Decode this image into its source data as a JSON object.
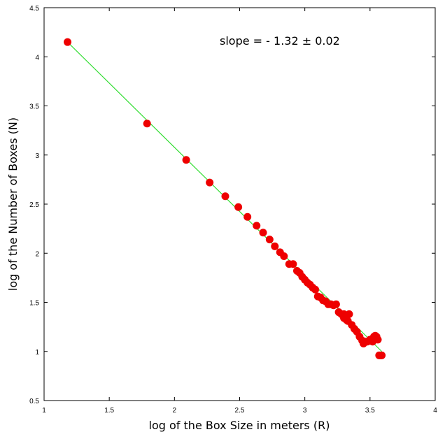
{
  "chart_data": {
    "type": "scatter",
    "title": "",
    "xlabel": "log of the Box Size in meters (R)",
    "ylabel": "log of the Number of Boxes (N)",
    "xlim": [
      1,
      4
    ],
    "ylim": [
      0.5,
      4.5
    ],
    "x_ticks": [
      1,
      1.5,
      2,
      2.5,
      3,
      3.5,
      4
    ],
    "x_tick_labels": [
      "1",
      "1.5",
      "2",
      "2.5",
      "3",
      "3.5",
      "4"
    ],
    "y_ticks": [
      0.5,
      1,
      1.5,
      2,
      2.5,
      3,
      3.5,
      4,
      4.5
    ],
    "y_tick_labels": [
      "0.5",
      "1",
      "1.5",
      "2",
      "2.5",
      "3",
      "3.5",
      "4",
      "4.5"
    ],
    "grid": false,
    "annotation": "slope = - 1.32 ± 0.02",
    "colors": {
      "points": "#ee0000",
      "fit_line": "#33dd33"
    },
    "series": [
      {
        "name": "",
        "x": [
          1.18,
          1.79,
          2.09,
          2.27,
          2.39,
          2.49,
          2.56,
          2.63,
          2.68,
          2.73,
          2.77,
          2.81,
          2.84,
          2.88,
          2.91,
          2.94,
          2.96,
          2.98,
          3.0,
          3.02,
          3.04,
          3.06,
          3.08,
          3.1,
          3.12,
          3.14,
          3.16,
          3.18,
          3.2,
          3.22,
          3.24,
          3.26,
          3.28,
          3.3,
          3.32,
          3.34,
          3.36,
          3.38,
          3.4,
          3.42,
          3.44,
          3.46,
          3.48,
          3.5,
          3.52,
          3.53,
          3.54,
          3.55,
          3.56,
          3.57,
          3.58,
          3.59,
          3.33,
          3.3,
          3.45,
          3.47
        ],
        "y": [
          4.15,
          3.32,
          2.95,
          2.72,
          2.58,
          2.47,
          2.37,
          2.28,
          2.21,
          2.14,
          2.07,
          2.01,
          1.97,
          1.89,
          1.89,
          1.82,
          1.8,
          1.76,
          1.73,
          1.7,
          1.68,
          1.65,
          1.63,
          1.56,
          1.55,
          1.52,
          1.51,
          1.48,
          1.48,
          1.47,
          1.48,
          1.4,
          1.38,
          1.34,
          1.32,
          1.38,
          1.27,
          1.23,
          1.2,
          1.15,
          1.11,
          1.1,
          1.1,
          1.12,
          1.1,
          1.15,
          1.16,
          1.15,
          1.12,
          0.96,
          0.96,
          0.96,
          1.31,
          1.38,
          1.08,
          1.1
        ]
      }
    ],
    "fit_line": {
      "x": [
        1.18,
        3.59
      ],
      "y": [
        4.15,
        1.0
      ]
    }
  }
}
